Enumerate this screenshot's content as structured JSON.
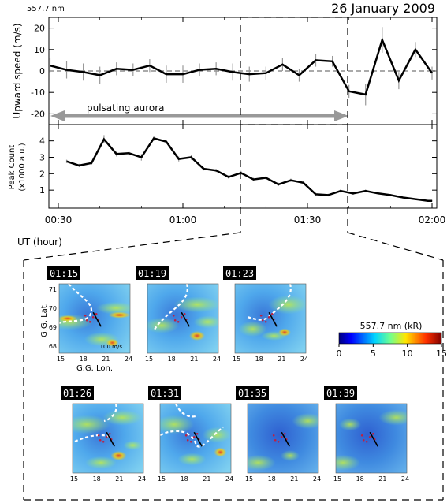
{
  "header": {
    "wavelength": "557.7 nm",
    "date": "26 January 2009"
  },
  "chart_data": [
    {
      "type": "line",
      "ylabel": "Upward speed  (m/s)",
      "ylim": [
        -25,
        25
      ],
      "yticks": [
        -20,
        -10,
        0,
        10,
        20
      ],
      "x": [
        "00:28",
        "00:32",
        "00:36",
        "00:40",
        "00:44",
        "00:48",
        "00:52",
        "00:56",
        "01:00",
        "01:04",
        "01:08",
        "01:12",
        "01:16",
        "01:20",
        "01:24",
        "01:28",
        "01:32",
        "01:36",
        "01:40",
        "01:44",
        "01:48",
        "01:52",
        "01:56",
        "02:00"
      ],
      "values": [
        2.5,
        0.5,
        -0.5,
        -2,
        1,
        0.5,
        2.5,
        -1.5,
        -1.5,
        0.5,
        1,
        -0.5,
        -1.5,
        -1,
        3,
        -2,
        5,
        4.5,
        -9.5,
        -11,
        14.5,
        -4.5,
        10,
        -1
      ],
      "error": [
        3.5,
        4,
        4,
        4,
        3,
        3,
        3,
        4,
        4,
        3,
        3,
        4,
        3.5,
        3,
        3,
        3,
        3,
        2.5,
        3,
        5,
        6,
        4,
        3.5,
        3
      ],
      "annotation": "pulsating aurora"
    },
    {
      "type": "line",
      "ylabel": "Peak Count",
      "ylabel2": "(x1000 a.u.)",
      "ylim": [
        0,
        4.8
      ],
      "yticks": [
        1,
        2,
        3,
        4
      ],
      "xticks": [
        "00:30",
        "01:00",
        "01:30",
        "02:00"
      ],
      "x": [
        "00:32",
        "00:35",
        "00:38",
        "00:41",
        "00:44",
        "00:47",
        "00:50",
        "00:53",
        "00:56",
        "00:59",
        "01:02",
        "01:05",
        "01:08",
        "01:11",
        "01:14",
        "01:17",
        "01:20",
        "01:23",
        "01:26",
        "01:29",
        "01:32",
        "01:35",
        "01:38",
        "01:41",
        "01:44",
        "01:47",
        "01:50",
        "01:53",
        "01:56",
        "01:59",
        "02:00"
      ],
      "values": [
        2.75,
        2.5,
        2.65,
        4.1,
        3.2,
        3.25,
        3.0,
        4.15,
        3.95,
        2.9,
        3.0,
        2.3,
        2.2,
        1.8,
        2.05,
        1.65,
        1.75,
        1.35,
        1.6,
        1.45,
        0.75,
        0.7,
        0.95,
        0.8,
        0.95,
        0.8,
        0.7,
        0.55,
        0.45,
        0.35,
        0.35
      ],
      "error": [
        0.1,
        0.1,
        0.1,
        0.25,
        0.15,
        0.15,
        0.2,
        0.15,
        0.1,
        0.15,
        0.15,
        0.1,
        0.1,
        0.1,
        0.12,
        0.1,
        0.1,
        0.1,
        0.1,
        0.1,
        0.08,
        0.08,
        0.1,
        0.08,
        0.08,
        0.06,
        0.06,
        0.05,
        0.05,
        0.05,
        0.05
      ]
    }
  ],
  "xaxis_label": "UT  (hour)",
  "images": {
    "times": [
      "01:15",
      "01:19",
      "01:23",
      "01:26",
      "01:31",
      "01:35",
      "01:39"
    ],
    "lat_label": "G.G. Lat.",
    "lat_ticks": [
      "71",
      "70",
      "69",
      "68"
    ],
    "lon_label": "G.G. Lon.",
    "lon_ticks": [
      "15",
      "18",
      "21",
      "24"
    ],
    "velocity_scale": "100 m/s"
  },
  "colorbar": {
    "title": "557.7 nm  (kR)",
    "ticks": [
      "0",
      "5",
      "10",
      "15"
    ]
  }
}
